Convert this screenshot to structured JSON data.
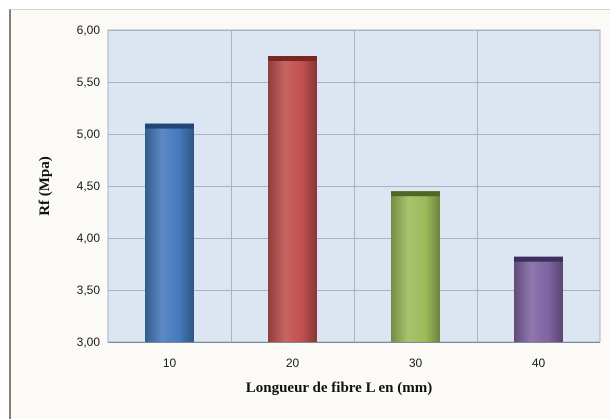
{
  "chart_data": {
    "type": "bar",
    "categories": [
      "10",
      "20",
      "30",
      "40"
    ],
    "values": [
      5.1,
      5.75,
      4.45,
      3.82
    ],
    "colors": [
      "#4679bd",
      "#c0504d",
      "#9bbb59",
      "#8064a2"
    ],
    "top_colors": [
      "#1f4776",
      "#7a2622",
      "#4d6726",
      "#3f2f5e"
    ],
    "title": "",
    "xlabel": "Longueur de fibre L en  (mm)",
    "ylabel": "Rf (Mpa)",
    "ylim": [
      3.0,
      6.0
    ],
    "ytick_values": [
      3.0,
      3.5,
      4.0,
      4.5,
      5.0,
      5.5,
      6.0
    ],
    "ytick_labels": [
      "3,00",
      "3,50",
      "4,00",
      "4,50",
      "5,00",
      "5,50",
      "6,00"
    ],
    "grid": true,
    "plot_background": "#dce6f2",
    "legend": "none"
  }
}
